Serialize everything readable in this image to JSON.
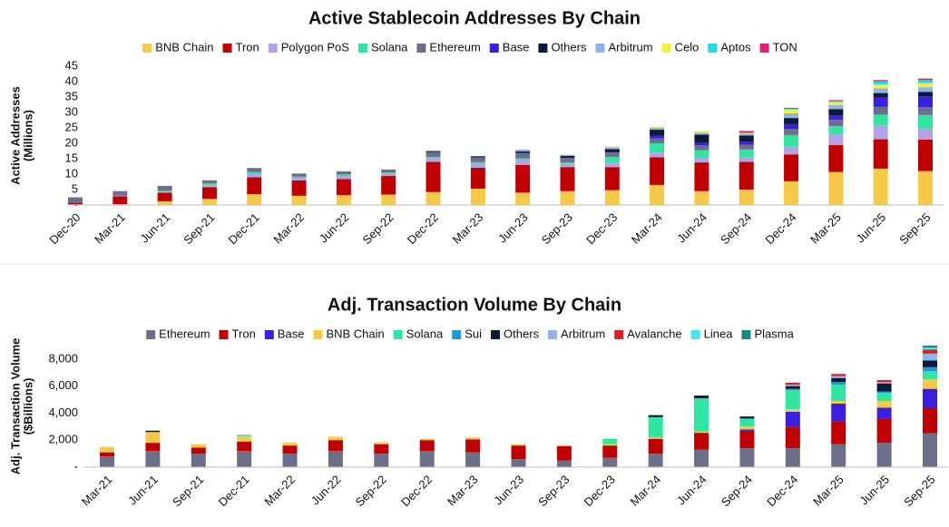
{
  "chart_data": [
    {
      "type": "bar",
      "stacked": true,
      "title": "Active Stablecoin Addresses By Chain",
      "ylabel": [
        "Active Addresses",
        "(Millions)"
      ],
      "categories": [
        "Dec-20",
        "Mar-21",
        "Jun-21",
        "Sep-21",
        "Dec-21",
        "Mar-22",
        "Jun-22",
        "Sep-22",
        "Dec-22",
        "Mar-23",
        "Jun-23",
        "Sep-23",
        "Dec-23",
        "Mar-24",
        "Jun-24",
        "Sep-24",
        "Dec-24",
        "Mar-25",
        "Jun-25",
        "Sep-25"
      ],
      "ylim": [
        0,
        45
      ],
      "yticks": [
        {
          "value": 0,
          "label": "-"
        },
        5,
        10,
        15,
        20,
        25,
        30,
        35,
        40,
        45
      ],
      "series": [
        {
          "name": "BNB Chain",
          "color": "#f7c948",
          "values": [
            0.2,
            0.3,
            1.2,
            2,
            3.5,
            3,
            3.2,
            3.4,
            4.2,
            5.3,
            4,
            4.5,
            4.8,
            6.5,
            4.5,
            5,
            7.7,
            10.7,
            11.8,
            11
          ]
        },
        {
          "name": "Tron",
          "color": "#c00000",
          "values": [
            0.5,
            2.5,
            2.8,
            3.8,
            5.5,
            5,
            5.2,
            6,
            9.8,
            6.8,
            9,
            7.8,
            7.5,
            9,
            9.3,
            9,
            8.7,
            8.7,
            9.5,
            10.2
          ]
        },
        {
          "name": "Polygon PoS",
          "color": "#b3a3e6",
          "values": [
            0,
            0.2,
            0.4,
            0.6,
            1,
            0.8,
            1,
            0.8,
            1.2,
            1.3,
            1.6,
            1,
            1.3,
            1.5,
            1.5,
            1.5,
            2.5,
            3.5,
            4.5,
            3.5
          ]
        },
        {
          "name": "Solana",
          "color": "#2ee6a0",
          "values": [
            0,
            0,
            0.2,
            0.6,
            0.7,
            0.4,
            0.5,
            0.3,
            0.4,
            0.5,
            0.5,
            0.5,
            2,
            3,
            2.5,
            2.5,
            3.8,
            2.7,
            3.5,
            4.5
          ]
        },
        {
          "name": "Ethereum",
          "color": "#6b6f8a",
          "values": [
            1.8,
            1.5,
            1.6,
            1,
            1.3,
            1,
            1,
            1,
            1.6,
            1.5,
            1.8,
            1.5,
            1.5,
            1.6,
            1.5,
            1.5,
            2,
            2,
            2.5,
            2.5
          ]
        },
        {
          "name": "Base",
          "color": "#3a1fe0",
          "values": [
            0,
            0,
            0,
            0,
            0,
            0,
            0,
            0,
            0,
            0,
            0,
            0,
            0,
            0.8,
            1,
            1,
            1.5,
            1.5,
            3,
            3.5
          ]
        },
        {
          "name": "Others",
          "color": "#0b1a3c",
          "values": [
            0,
            0,
            0,
            0,
            0,
            0,
            0,
            0,
            0.3,
            0.4,
            0.5,
            0.6,
            1,
            2,
            2.5,
            2,
            2,
            2,
            1.5,
            1.5
          ]
        },
        {
          "name": "Arbitrum",
          "color": "#8fb4e8",
          "values": [
            0,
            0,
            0,
            0,
            0,
            0,
            0,
            0,
            0,
            0,
            0.6,
            0.4,
            0.6,
            0.7,
            0.6,
            0.6,
            1.5,
            1.3,
            1.5,
            1.5
          ]
        },
        {
          "name": "Celo",
          "color": "#f2f03c",
          "values": [
            0,
            0,
            0,
            0,
            0,
            0,
            0,
            0,
            0,
            0,
            0,
            0,
            0.3,
            0.3,
            0.6,
            0.3,
            1.3,
            1,
            1.3,
            1.3
          ]
        },
        {
          "name": "Aptos",
          "color": "#20dce6",
          "values": [
            0,
            0,
            0,
            0,
            0,
            0,
            0,
            0,
            0,
            0,
            0,
            0,
            0,
            0,
            0,
            0,
            0.2,
            0.3,
            1,
            1
          ]
        },
        {
          "name": "TON",
          "color": "#e0207a",
          "values": [
            0,
            0,
            0,
            0,
            0,
            0,
            0,
            0,
            0,
            0,
            0,
            0,
            0,
            0,
            0,
            0.6,
            0.3,
            0.3,
            0.4,
            0.5
          ]
        }
      ]
    },
    {
      "type": "bar",
      "stacked": true,
      "title": "Adj. Transaction Volume By Chain",
      "ylabel": [
        "Adj. Transaction Volume",
        "($Billions)"
      ],
      "categories": [
        "Mar-21",
        "Jun-21",
        "Sep-21",
        "Dec-21",
        "Mar-22",
        "Jun-22",
        "Sep-22",
        "Dec-22",
        "Mar-23",
        "Jun-23",
        "Sep-23",
        "Dec-23",
        "Mar-24",
        "Jun-24",
        "Sep-24",
        "Dec-24",
        "Mar-25",
        "Jun-25",
        "Sep-25"
      ],
      "ylim": [
        0,
        9000
      ],
      "yticks": [
        {
          "value": 0,
          "label": "-"
        },
        {
          "value": 2000,
          "label": "2,000"
        },
        {
          "value": 4000,
          "label": "4,000"
        },
        {
          "value": 6000,
          "label": "6,000"
        },
        {
          "value": 8000,
          "label": "8,000"
        }
      ],
      "series": [
        {
          "name": "Ethereum",
          "color": "#6b6f8a",
          "values": [
            800,
            1200,
            1000,
            1200,
            1000,
            1200,
            1000,
            1200,
            1100,
            600,
            500,
            700,
            1000,
            1300,
            1400,
            1400,
            1700,
            1800,
            2500
          ]
        },
        {
          "name": "Tron",
          "color": "#c00000",
          "values": [
            300,
            600,
            450,
            700,
            600,
            800,
            700,
            800,
            950,
            1000,
            1050,
            900,
            1100,
            1200,
            1300,
            1600,
            1700,
            1800,
            1900
          ]
        },
        {
          "name": "Base",
          "color": "#3a1fe0",
          "values": [
            0,
            0,
            0,
            0,
            0,
            0,
            0,
            0,
            0,
            0,
            0,
            0,
            0,
            50,
            100,
            1100,
            1300,
            800,
            1400
          ]
        },
        {
          "name": "BNB Chain",
          "color": "#f7c948",
          "values": [
            400,
            800,
            250,
            400,
            200,
            250,
            150,
            100,
            150,
            100,
            80,
            100,
            100,
            100,
            200,
            200,
            200,
            500,
            700
          ]
        },
        {
          "name": "Solana",
          "color": "#2ee6a0",
          "values": [
            0,
            0,
            0,
            100,
            0,
            0,
            0,
            0,
            0,
            0,
            0,
            400,
            1500,
            2450,
            600,
            1400,
            1200,
            600,
            600
          ]
        },
        {
          "name": "Sui",
          "color": "#1a9ad6",
          "values": [
            0,
            0,
            0,
            0,
            0,
            0,
            0,
            0,
            0,
            0,
            0,
            0,
            0,
            0,
            0,
            100,
            200,
            100,
            300
          ]
        },
        {
          "name": "Others",
          "color": "#0b1a3c",
          "values": [
            0,
            100,
            0,
            0,
            0,
            0,
            0,
            0,
            0,
            0,
            0,
            0,
            150,
            200,
            150,
            200,
            300,
            600,
            500
          ]
        },
        {
          "name": "Arbitrum",
          "color": "#8fb4e8",
          "values": [
            0,
            0,
            0,
            0,
            0,
            0,
            0,
            0,
            0,
            0,
            0,
            0,
            0,
            0,
            0,
            100,
            150,
            100,
            500
          ]
        },
        {
          "name": "Avalanche",
          "color": "#e02020",
          "values": [
            0,
            0,
            0,
            0,
            0,
            0,
            0,
            0,
            0,
            0,
            0,
            0,
            0,
            0,
            0,
            150,
            150,
            150,
            300
          ]
        },
        {
          "name": "Linea",
          "color": "#40e8f0",
          "values": [
            0,
            0,
            0,
            0,
            0,
            0,
            0,
            0,
            0,
            0,
            0,
            0,
            0,
            0,
            0,
            0,
            0,
            0,
            150
          ]
        },
        {
          "name": "Plasma",
          "color": "#1a8a80",
          "values": [
            0,
            0,
            0,
            0,
            0,
            0,
            0,
            0,
            0,
            0,
            0,
            0,
            0,
            0,
            0,
            0,
            0,
            0,
            150
          ]
        }
      ]
    }
  ]
}
